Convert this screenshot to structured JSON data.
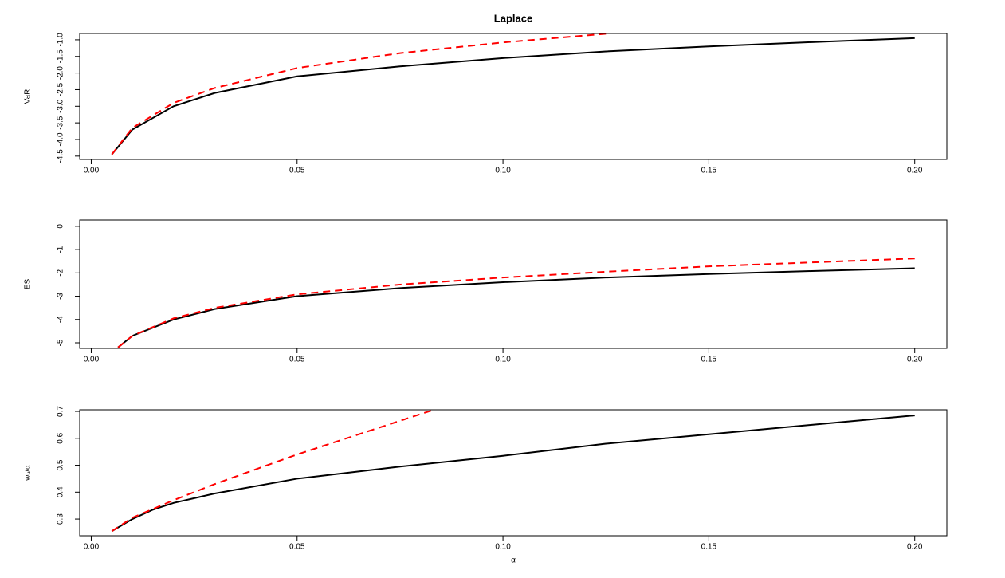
{
  "chart_data": [
    {
      "type": "line",
      "title": "Laplace",
      "ylabel": "VaR",
      "xlim": [
        -0.0028,
        0.2078
      ],
      "ylim": [
        -4.6,
        -0.81
      ],
      "xticks": [
        {
          "value": 0,
          "label": "0.00"
        },
        {
          "value": 0.05,
          "label": "0.05"
        },
        {
          "value": 0.1,
          "label": "0.10"
        },
        0.15,
        {
          "value": 0.2,
          "label": "0.20"
        }
      ],
      "yticks": [
        {
          "value": -4.5,
          "label": "-4.5"
        },
        {
          "value": -4,
          "label": "-4.0"
        },
        {
          "value": -3.5,
          "label": "-3.5"
        },
        {
          "value": -3,
          "label": "-3.0"
        },
        {
          "value": -2.5,
          "label": "-2.5"
        },
        {
          "value": -2,
          "label": "-2.0"
        },
        {
          "value": -1.5,
          "label": "-1.5"
        },
        {
          "value": -1,
          "label": "-1.0"
        }
      ],
      "series": [
        {
          "color": "#000000",
          "dashed": false,
          "x": [
            0.005,
            0.01,
            0.02,
            0.03,
            0.05,
            0.075,
            0.1,
            0.125,
            0.15,
            0.175,
            0.2
          ],
          "values": [
            -4.45,
            -3.7,
            -3.0,
            -2.6,
            -2.1,
            -1.8,
            -1.55,
            -1.35,
            -1.2,
            -1.07,
            -0.95
          ]
        },
        {
          "color": "#ff0000",
          "dashed": true,
          "x": [
            0.005,
            0.01,
            0.02,
            0.03,
            0.05,
            0.075,
            0.1,
            0.125
          ],
          "values": [
            -4.45,
            -3.65,
            -2.9,
            -2.45,
            -1.85,
            -1.4,
            -1.08,
            -0.82
          ]
        }
      ]
    },
    {
      "type": "line",
      "ylabel": "ES",
      "xlim": [
        -0.0028,
        0.2078
      ],
      "ylim": [
        -5.24,
        0.27
      ],
      "xticks": [
        {
          "value": 0,
          "label": "0.00"
        },
        {
          "value": 0.05,
          "label": "0.05"
        },
        {
          "value": 0.1,
          "label": "0.10"
        },
        0.15,
        {
          "value": 0.2,
          "label": "0.20"
        }
      ],
      "yticks": [
        -5,
        -4,
        -3,
        -2,
        -1,
        0
      ],
      "series": [
        {
          "color": "#000000",
          "dashed": false,
          "x": [
            0.0065,
            0.01,
            0.02,
            0.03,
            0.05,
            0.075,
            0.1,
            0.125,
            0.15,
            0.175,
            0.2
          ],
          "values": [
            -5.2,
            -4.7,
            -4.0,
            -3.55,
            -3.0,
            -2.65,
            -2.4,
            -2.2,
            -2.05,
            -1.92,
            -1.8
          ]
        },
        {
          "color": "#ff0000",
          "dashed": true,
          "x": [
            0.0065,
            0.01,
            0.02,
            0.03,
            0.05,
            0.075,
            0.1,
            0.125,
            0.15,
            0.175,
            0.2
          ],
          "values": [
            -5.2,
            -4.7,
            -3.95,
            -3.5,
            -2.92,
            -2.5,
            -2.2,
            -1.95,
            -1.72,
            -1.55,
            -1.38
          ]
        }
      ]
    },
    {
      "type": "line",
      "ylabel": "wᵤ/α",
      "xlabel": "α",
      "xlim": [
        -0.0028,
        0.2078
      ],
      "ylim": [
        0.238,
        0.706
      ],
      "xticks": [
        {
          "value": 0,
          "label": "0.00"
        },
        {
          "value": 0.05,
          "label": "0.05"
        },
        {
          "value": 0.1,
          "label": "0.10"
        },
        0.15,
        {
          "value": 0.2,
          "label": "0.20"
        }
      ],
      "yticks": [
        0.3,
        0.4,
        0.5,
        0.6,
        0.7
      ],
      "series": [
        {
          "color": "#000000",
          "dashed": false,
          "x": [
            0.005,
            0.01,
            0.015,
            0.02,
            0.03,
            0.05,
            0.075,
            0.1,
            0.125,
            0.15,
            0.175,
            0.2
          ],
          "values": [
            0.255,
            0.3,
            0.335,
            0.36,
            0.395,
            0.45,
            0.495,
            0.535,
            0.58,
            0.615,
            0.65,
            0.685
          ]
        },
        {
          "color": "#ff0000",
          "dashed": true,
          "x": [
            0.005,
            0.01,
            0.02,
            0.03,
            0.05,
            0.07,
            0.083
          ],
          "values": [
            0.255,
            0.305,
            0.37,
            0.43,
            0.54,
            0.64,
            0.705
          ]
        }
      ]
    }
  ]
}
